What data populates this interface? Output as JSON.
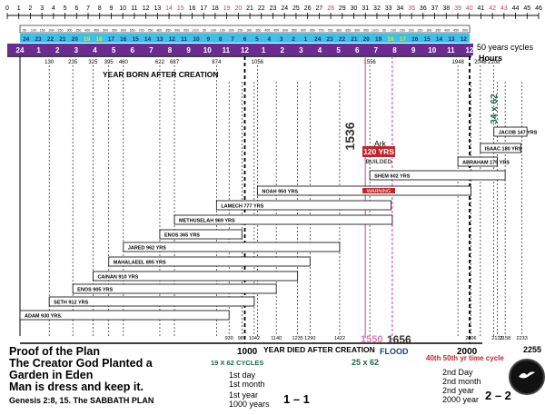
{
  "top_ruler": [
    "0",
    "1",
    "2",
    "3",
    "4",
    "5",
    "6",
    "7",
    "8",
    "9",
    "10",
    "11",
    "12",
    "13",
    "14",
    "15",
    "16",
    "17",
    "18",
    "19",
    "20",
    "21",
    "22",
    "23",
    "24",
    "25",
    "26",
    "27",
    "28",
    "29",
    "30",
    "31",
    "32",
    "33",
    "34",
    "35",
    "36",
    "37",
    "38",
    "39",
    "40",
    "41",
    "42",
    "43",
    "44",
    "45",
    "46"
  ],
  "top_ruler_colored": {
    "14": "#c0407a",
    "15": "#c0407a",
    "19": "#c0407a",
    "20": "#c0407a",
    "28": "#c0407a",
    "35": "#c0407a",
    "39": "#c0407a",
    "40": "#c0407a",
    "42": "#c0407a",
    "43": "#c0407a"
  },
  "cycle_scale": [
    "50",
    "100",
    "150",
    "200",
    "250",
    "300",
    "350",
    "400",
    "450",
    "500",
    "550",
    "600",
    "650",
    "700",
    "750",
    "800",
    "850",
    "900",
    "950",
    "1000",
    "50",
    "100",
    "150",
    "200",
    "250",
    "300",
    "350",
    "400",
    "450",
    "500",
    "550",
    "600",
    "650",
    "700",
    "750",
    "800",
    "850",
    "900",
    "950",
    "1000",
    "50",
    "100",
    "150",
    "200",
    "250",
    "300",
    "350",
    "400",
    "450",
    "500"
  ],
  "cycle_label": "50 years cycles",
  "hours_top": [
    "24",
    "23",
    "22",
    "21",
    "20",
    "19",
    "18",
    "17",
    "16",
    "15",
    "14",
    "13",
    "12",
    "11",
    "10",
    "9",
    "8",
    "7",
    "6",
    "5",
    "4",
    "3",
    "2",
    "1",
    "24",
    "23",
    "22",
    "21",
    "20",
    "19",
    "18",
    "17",
    "16",
    "15",
    "14",
    "13",
    "12"
  ],
  "hours_label": "Hours",
  "purple_row": [
    "24",
    "1",
    "2",
    "3",
    "4",
    "5",
    "6",
    "7",
    "8",
    "9",
    "10",
    "11",
    "12",
    "1",
    "2",
    "3",
    "4",
    "5",
    "6",
    "7",
    "8",
    "9",
    "10",
    "11",
    "12"
  ],
  "born_years": [
    "130",
    "235",
    "325",
    "395",
    "460",
    "622",
    "687",
    "874",
    "1056",
    "1556",
    "1948",
    "2048",
    "2108"
  ],
  "born_heading": "YEAR BORN AFTER CREATION",
  "mid_label_1536": "1536",
  "rot_34x62": "34 x 62",
  "ark_label": "Ark",
  "yrs120": "120 YRS",
  "builded": "BUILDED",
  "warning": "WARNING",
  "persons": [
    {
      "label": "JACOB 147 YRS"
    },
    {
      "label": "ISAAC 180 YRS"
    },
    {
      "label": "ABRAHAM 175 YRS"
    },
    {
      "label": "SHEM 602 YRS"
    },
    {
      "label": "NOAH 950 YRS"
    },
    {
      "label": "LAMECH 777 YRS"
    },
    {
      "label": "METHUSELAH 969 YRS"
    },
    {
      "label": "ENOS 365 YRS"
    },
    {
      "label": "JARED 962 YRS"
    },
    {
      "label": "MAHALAEEL 895 YRS"
    },
    {
      "label": "CAINAN 910 YRS"
    },
    {
      "label": "ENOS 905 YRS"
    },
    {
      "label": "SETH 912 YRS"
    },
    {
      "label": "ADAM 930 YRS."
    }
  ],
  "died_years": [
    "930",
    "987",
    "1042",
    "1140",
    "1235",
    "1290",
    "1422",
    "2006",
    "2123",
    "2158",
    "2233"
  ],
  "died_heading": "YEAR DIED AFTER CREATION",
  "axis_1000": "1000",
  "axis_1550": "1550",
  "axis_1656": "1656",
  "flood": "FLOOD",
  "axis_2000": "2000",
  "axis_2255": "2255",
  "cycles_19x62": "19 X 62 CYCLES",
  "cycles_25x62": "25 x 62",
  "jubilee": "40th 50th yr time cycle",
  "proof": {
    "line1": "Proof of the Plan",
    "line2": "The Creator God Planted a",
    "line3": "Garden in Eden",
    "line4": "Man is dress and keep it.",
    "genesis": "Genesis 2:8, 15. The SABBATH  PLAN"
  },
  "day1": {
    "l1": "1st  day",
    "l2": "1st  month",
    "l3": "1st  year",
    "l4": "1000 years"
  },
  "day2": {
    "l1": "2nd Day",
    "l2": "2nd month",
    "l3": "2nd year",
    "l4": "2000 year"
  },
  "page1": "1 – 1",
  "page2": "2 – 2",
  "colors": {
    "cyan": "#3fc0ea",
    "purple": "#6a2c91",
    "pink": "#d8389a",
    "red": "#c0272d",
    "green": "#1a6b4a",
    "yellow": "#e6e600"
  }
}
